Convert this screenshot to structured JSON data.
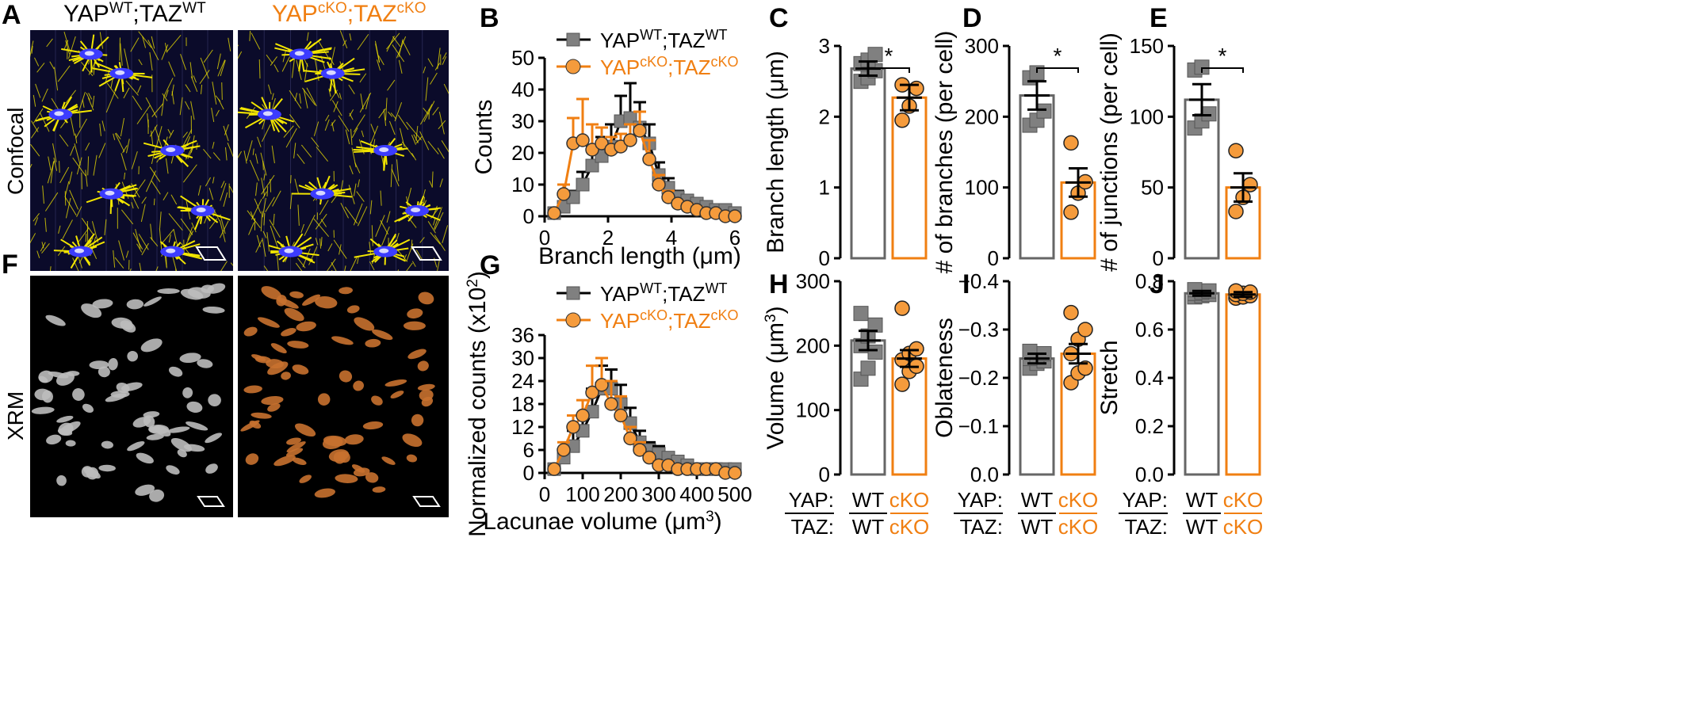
{
  "colors": {
    "wt": "#000000",
    "wt_fill": "#808080",
    "cko": "#f07f12",
    "cko_fill": "#f59b3c",
    "confocal_cells": "#f2e500",
    "nuclei": "#3c3cff",
    "xrm_wt": "#bcbcbc",
    "xrm_cko": "#c8712f"
  },
  "panels": {
    "A": {
      "letter": "A",
      "title_wt_main": "YAP",
      "title_wt_sup1": "WT",
      "title_wt_mid": ";TAZ",
      "title_wt_sup2": "WT",
      "title_cko_main": "YAP",
      "title_cko_sup1": "cKO",
      "title_cko_mid": ";TAZ",
      "title_cko_sup2": "cKO",
      "row_label": "Confocal"
    },
    "F": {
      "letter": "F",
      "row_label": "XRM"
    },
    "B": {
      "letter": "B"
    },
    "C": {
      "letter": "C"
    },
    "D": {
      "letter": "D"
    },
    "E": {
      "letter": "E"
    },
    "G": {
      "letter": "G"
    },
    "H": {
      "letter": "H"
    },
    "I": {
      "letter": "I"
    },
    "J": {
      "letter": "J"
    }
  },
  "legend": {
    "wt_main": "YAP",
    "wt_sup1": "WT",
    "wt_mid": ";TAZ",
    "wt_sup2": "WT",
    "cko_main": "YAP",
    "cko_sup1": "cKO",
    "cko_mid": ";TAZ",
    "cko_sup2": "cKO"
  },
  "group_labels": {
    "yap": "YAP:",
    "taz": "TAZ:",
    "wt": "WT",
    "cko": "cKO"
  },
  "chart_data": [
    {
      "id": "B",
      "type": "line",
      "xlabel": "Branch length (μm)",
      "ylabel": "Counts",
      "xlim": [
        0,
        6
      ],
      "ylim": [
        0,
        50
      ],
      "xticks": [
        0,
        2,
        4,
        6
      ],
      "yticks": [
        0,
        10,
        20,
        30,
        40,
        50
      ],
      "series": [
        {
          "name": "YAP WT;TAZ WT",
          "x": [
            0.3,
            0.6,
            0.9,
            1.2,
            1.5,
            1.8,
            2.1,
            2.4,
            2.7,
            3.0,
            3.3,
            3.6,
            3.9,
            4.2,
            4.5,
            4.8,
            5.1,
            5.4,
            5.7,
            6.0
          ],
          "values": [
            1,
            3,
            6,
            10,
            16,
            19,
            22,
            30,
            31,
            28,
            23,
            13,
            9,
            6,
            5,
            4,
            3,
            2,
            2,
            1
          ],
          "err": [
            0,
            1,
            2,
            4,
            6,
            6,
            7,
            8,
            11,
            8,
            6,
            4,
            3,
            2,
            1,
            1,
            1,
            0,
            0,
            0
          ]
        },
        {
          "name": "YAP cKO;TAZ cKO",
          "x": [
            0.3,
            0.6,
            0.9,
            1.2,
            1.5,
            1.8,
            2.1,
            2.4,
            2.7,
            3.0,
            3.3,
            3.6,
            3.9,
            4.2,
            4.5,
            4.8,
            5.1,
            5.4,
            5.7,
            6.0
          ],
          "values": [
            1,
            7,
            23,
            24,
            21,
            23,
            21,
            22,
            24,
            27,
            18,
            10,
            6,
            4,
            3,
            2,
            1,
            1,
            0,
            0
          ],
          "err": [
            0,
            3,
            8,
            13,
            8,
            5,
            4,
            4,
            5,
            6,
            6,
            3,
            2,
            1,
            1,
            1,
            0,
            0,
            0,
            0
          ]
        }
      ]
    },
    {
      "id": "C",
      "type": "bar",
      "ylabel": "Branch length (μm)",
      "ylim": [
        0,
        3
      ],
      "yticks": [
        0,
        1,
        2,
        3
      ],
      "categories": [
        "WT",
        "cKO"
      ],
      "values": [
        2.68,
        2.27
      ],
      "err": [
        0.1,
        0.18
      ],
      "points": [
        [
          2.5,
          2.55,
          2.65,
          2.75,
          2.8,
          2.88
        ],
        [
          1.95,
          2.15,
          2.4,
          2.45
        ]
      ],
      "significance": "*"
    },
    {
      "id": "D",
      "type": "bar",
      "ylabel": "# of branches (per cell)",
      "ylim": [
        0,
        300
      ],
      "yticks": [
        0,
        100,
        200,
        300
      ],
      "categories": [
        "WT",
        "cKO"
      ],
      "values": [
        230,
        107
      ],
      "err": [
        20,
        20
      ],
      "points": [
        [
          188,
          195,
          208,
          255,
          262
        ],
        [
          65,
          92,
          108,
          163
        ]
      ],
      "significance": "*"
    },
    {
      "id": "E",
      "type": "bar",
      "ylabel": "# of junctions (per cell)",
      "ylim": [
        0,
        150
      ],
      "yticks": [
        0,
        50,
        100,
        150
      ],
      "categories": [
        "WT",
        "cKO"
      ],
      "values": [
        112,
        50
      ],
      "err": [
        11,
        10
      ],
      "points": [
        [
          92,
          97,
          102,
          133,
          135
        ],
        [
          33,
          43,
          52,
          76
        ]
      ],
      "significance": "*"
    },
    {
      "id": "G",
      "type": "line",
      "xlabel": "Lacunae volume (μm3)",
      "ylabel": "Normalized counts (x102)",
      "xlim": [
        0,
        500
      ],
      "ylim": [
        0,
        36
      ],
      "xticks": [
        0,
        100,
        200,
        300,
        400,
        500
      ],
      "yticks": [
        0,
        6,
        12,
        18,
        24,
        30,
        36
      ],
      "series": [
        {
          "name": "YAP WT;TAZ WT",
          "x": [
            25,
            50,
            75,
            100,
            125,
            150,
            175,
            200,
            225,
            250,
            275,
            300,
            325,
            350,
            375,
            400,
            425,
            450,
            475,
            500
          ],
          "values": [
            1,
            4,
            7,
            11,
            16,
            22,
            22,
            18,
            13,
            8,
            6,
            5,
            4,
            3,
            2,
            1,
            1,
            1,
            1,
            1
          ],
          "err": [
            0,
            2,
            4,
            4,
            6,
            6,
            5,
            5,
            4,
            3,
            2,
            2,
            1,
            1,
            1,
            0,
            0,
            0,
            0,
            0
          ]
        },
        {
          "name": "YAP cKO;TAZ cKO",
          "x": [
            25,
            50,
            75,
            100,
            125,
            150,
            175,
            200,
            225,
            250,
            275,
            300,
            325,
            350,
            375,
            400,
            425,
            450,
            475,
            500
          ],
          "values": [
            1,
            6,
            12,
            15,
            21,
            23,
            18,
            15,
            9,
            6,
            4,
            2,
            2,
            1,
            1,
            1,
            1,
            1,
            0,
            0
          ],
          "err": [
            0,
            2,
            3,
            4,
            7,
            7,
            6,
            5,
            3,
            2,
            1,
            1,
            1,
            0,
            0,
            0,
            0,
            0,
            0,
            0
          ]
        }
      ]
    },
    {
      "id": "H",
      "type": "bar",
      "ylabel": "Volume (μm3)",
      "ylim": [
        0,
        300
      ],
      "yticks": [
        0,
        100,
        200,
        300
      ],
      "categories": [
        "WT",
        "cKO"
      ],
      "values": [
        208,
        180
      ],
      "err": [
        15,
        13
      ],
      "points": [
        [
          148,
          165,
          190,
          200,
          215,
          232,
          250
        ],
        [
          140,
          160,
          168,
          178,
          188,
          195,
          258
        ]
      ]
    },
    {
      "id": "I",
      "type": "bar",
      "ylabel": "Oblateness",
      "ylim": [
        0,
        -0.4
      ],
      "yticks": [
        0.0,
        -0.1,
        -0.2,
        -0.3,
        -0.4
      ],
      "categories": [
        "WT",
        "cKO"
      ],
      "values": [
        -0.24,
        -0.25
      ],
      "err": [
        0.01,
        0.02
      ],
      "points": [
        [
          -0.22,
          -0.23,
          -0.235,
          -0.24,
          -0.245,
          -0.25,
          -0.255
        ],
        [
          -0.19,
          -0.21,
          -0.22,
          -0.25,
          -0.28,
          -0.3,
          -0.335
        ]
      ]
    },
    {
      "id": "J",
      "type": "bar",
      "ylabel": "Stretch",
      "ylim": [
        0,
        0.8
      ],
      "yticks": [
        0.0,
        0.2,
        0.4,
        0.6,
        0.8
      ],
      "categories": [
        "WT",
        "cKO"
      ],
      "values": [
        0.75,
        0.745
      ],
      "err": [
        0.01,
        0.01
      ],
      "points": [
        [
          0.735,
          0.74,
          0.745,
          0.75,
          0.755,
          0.76,
          0.765
        ],
        [
          0.73,
          0.735,
          0.74,
          0.745,
          0.75,
          0.755,
          0.76
        ]
      ]
    }
  ]
}
